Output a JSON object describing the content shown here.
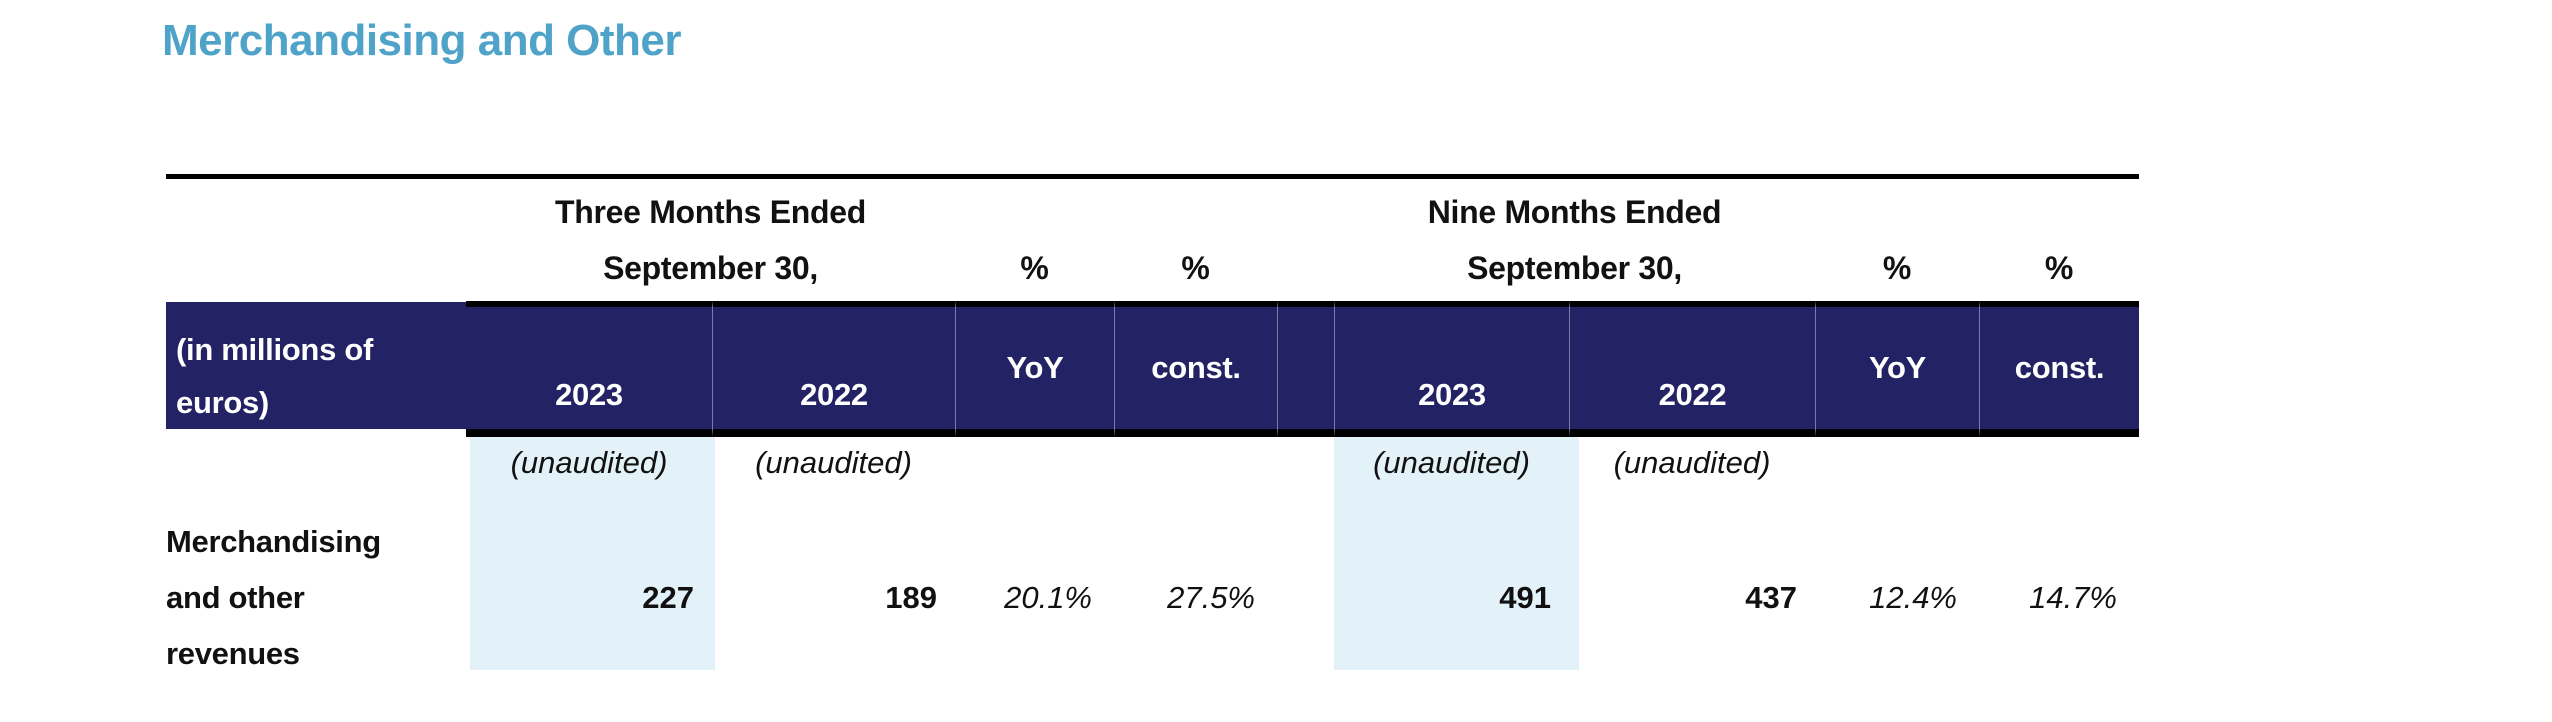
{
  "title": "Merchandising and Other",
  "colors": {
    "navy": "#232264",
    "highlight": "#E3F2F9",
    "title-blue": "#4FA3C8"
  },
  "table": {
    "period_groups": [
      {
        "line1": "Three Months Ended",
        "line2": "September 30,"
      },
      {
        "line1": "Nine Months Ended",
        "line2": "September 30,"
      }
    ],
    "pct_headers": [
      "%",
      "%",
      "%",
      "%"
    ],
    "unit_label": {
      "line1": "(in millions of",
      "line2": "euros)"
    },
    "year_headers": {
      "g1_2023": "2023",
      "g1_2022": "2022",
      "g1_yoy": "YoY",
      "g1_const": "const.",
      "g2_2023": "2023",
      "g2_2022": "2022",
      "g2_yoy": "YoY",
      "g2_const": "const."
    },
    "unaudited": [
      "(unaudited)",
      "(unaudited)",
      "(unaudited)",
      "(unaudited)"
    ],
    "row": {
      "label_line1": "Merchandising",
      "label_line2": "and other",
      "label_line3": "revenues",
      "g1_2023": "227",
      "g1_2022": "189",
      "g1_yoy": "20.1%",
      "g1_const": "27.5%",
      "g2_2023": "491",
      "g2_2022": "437",
      "g2_yoy": "12.4%",
      "g2_const": "14.7%"
    }
  }
}
